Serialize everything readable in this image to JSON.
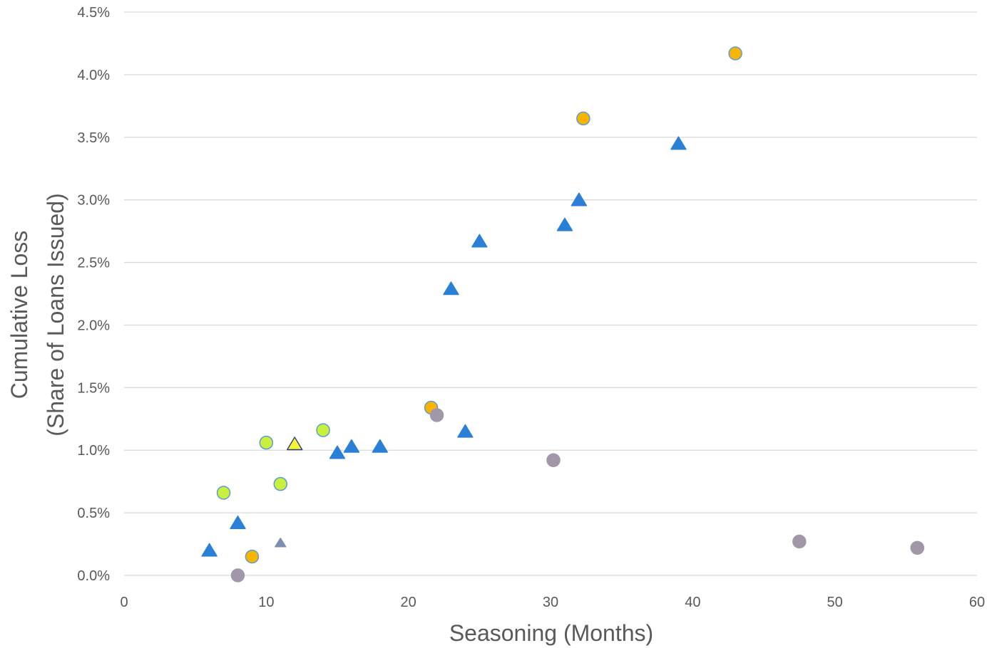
{
  "chart_data": {
    "type": "scatter",
    "title": "",
    "xlabel": "Seasoning (Months)",
    "ylabel_line1": "Cumulative Loss",
    "ylabel_line2": "(Share of Loans Issued)",
    "xlim": [
      0,
      60
    ],
    "ylim": [
      0,
      4.5
    ],
    "x_ticks": [
      0,
      10,
      20,
      30,
      40,
      50,
      60
    ],
    "x_tick_labels": [
      "0",
      "10",
      "20",
      "30",
      "40",
      "50",
      "60"
    ],
    "y_ticks": [
      0,
      0.5,
      1.0,
      1.5,
      2.0,
      2.5,
      3.0,
      3.5,
      4.0,
      4.5
    ],
    "y_tick_labels": [
      "0.0%",
      "0.5%",
      "1.0%",
      "1.5%",
      "2.0%",
      "2.5%",
      "3.0%",
      "3.5%",
      "4.0%",
      "4.5%"
    ],
    "grid": "horizontal",
    "legend": "none",
    "series": [
      {
        "marker": "triangle",
        "fill": "#2a7fd6",
        "stroke": "#2a7fd6",
        "points": [
          {
            "x": 6,
            "y": 0.2
          },
          {
            "x": 8,
            "y": 0.42
          },
          {
            "x": 15,
            "y": 0.98
          },
          {
            "x": 16,
            "y": 1.03
          },
          {
            "x": 18,
            "y": 1.03
          },
          {
            "x": 23,
            "y": 2.29
          },
          {
            "x": 24,
            "y": 1.15
          },
          {
            "x": 25,
            "y": 2.67
          },
          {
            "x": 31,
            "y": 2.8
          },
          {
            "x": 32,
            "y": 3.0
          },
          {
            "x": 39,
            "y": 3.45
          }
        ]
      },
      {
        "marker": "triangle-small",
        "fill": "#7a8fb0",
        "stroke": "#7a8fb0",
        "points": [
          {
            "x": 11,
            "y": 0.26
          }
        ]
      },
      {
        "marker": "triangle",
        "fill": "#f5f530",
        "stroke": "#2b3a8f",
        "points": [
          {
            "x": 12,
            "y": 1.05
          }
        ]
      },
      {
        "marker": "circle",
        "fill": "#c9f03c",
        "stroke": "#5b9bd5",
        "points": [
          {
            "x": 7,
            "y": 0.66
          },
          {
            "x": 10,
            "y": 1.06
          },
          {
            "x": 11,
            "y": 0.73
          },
          {
            "x": 14,
            "y": 1.16
          }
        ]
      },
      {
        "marker": "circle",
        "fill": "#f7b500",
        "stroke": "#5b9bd5",
        "points": [
          {
            "x": 9,
            "y": 0.15
          },
          {
            "x": 21.6,
            "y": 1.34
          },
          {
            "x": 32.3,
            "y": 3.65
          },
          {
            "x": 43,
            "y": 4.17
          }
        ]
      },
      {
        "marker": "circle",
        "fill": "#a197a8",
        "stroke": "#a197a8",
        "points": [
          {
            "x": 8,
            "y": 0.0
          },
          {
            "x": 22,
            "y": 1.28
          },
          {
            "x": 30.2,
            "y": 0.92
          },
          {
            "x": 47.5,
            "y": 0.27
          },
          {
            "x": 55.8,
            "y": 0.22
          }
        ]
      }
    ]
  }
}
